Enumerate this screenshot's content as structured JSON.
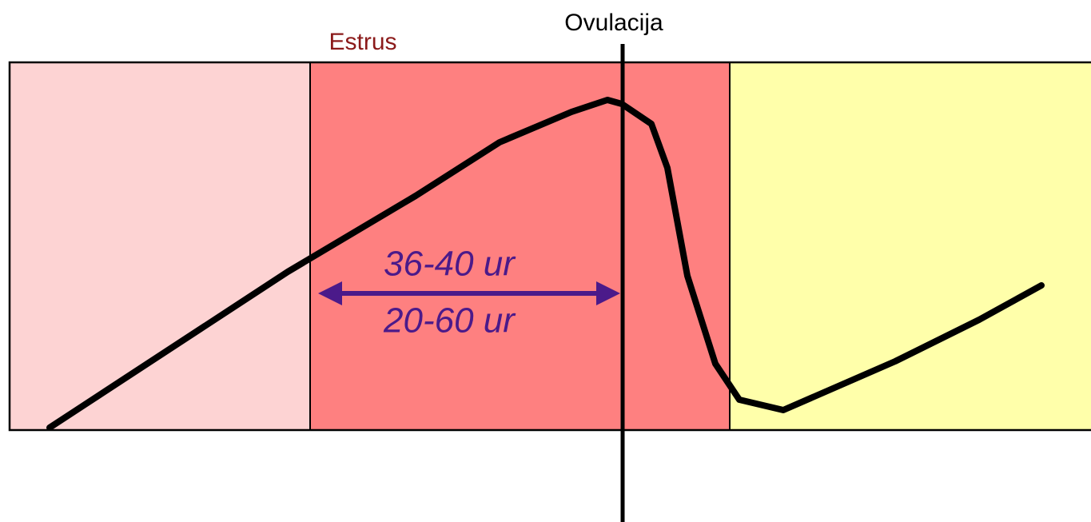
{
  "labels": {
    "estrus": "Estrus",
    "ovulation": "Ovulacija"
  },
  "interval": {
    "typical": "36-40 ur",
    "range": "20-60 ur"
  }
}
